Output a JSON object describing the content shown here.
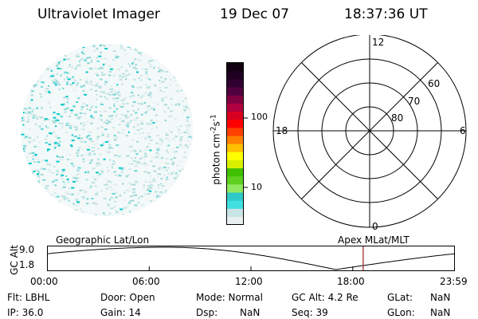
{
  "header": {
    "title": "Ultraviolet Imager",
    "date": "19 Dec 07",
    "time": "18:37:36 UT"
  },
  "colorbar": {
    "unit_base": "photon cm",
    "unit_exp1": "-2",
    "unit_mid": "s",
    "unit_exp2": "-1",
    "tick_labels": [
      "100",
      "10"
    ],
    "colors": [
      "#e8f0f0",
      "#c8e4e4",
      "#40e0e0",
      "#30c8c8",
      "#90e860",
      "#60d020",
      "#40c000",
      "#d8f000",
      "#ffff00",
      "#ffc000",
      "#ff8000",
      "#ff4000",
      "#ff0000",
      "#d80020",
      "#b00040",
      "#800040",
      "#500040",
      "#300030",
      "#200020",
      "#100010"
    ]
  },
  "polar": {
    "mlt_labels": {
      "top": "12",
      "bottom": "0",
      "left": "18",
      "right": "6"
    },
    "lat_labels": [
      "60",
      "70",
      "80"
    ]
  },
  "orbit": {
    "y_axis_label": "GC Alt",
    "y_ticks": [
      "9.0",
      "1.8"
    ],
    "left_title": "Geographic Lat/Lon",
    "right_title": "Apex MLat/MLT",
    "x_ticks": [
      "00:00",
      "06:00",
      "12:00",
      "18:00",
      "23:59"
    ],
    "marker_time": "18:37"
  },
  "info": {
    "filter_label": "Flt: LBHL",
    "ip_label": "IP: 36.0",
    "door_label": "Door:  Open",
    "gain_label": "Gain:  14",
    "mode_label": "Mode:  Normal",
    "dsp_label": "Dsp:",
    "dsp_value": "NaN",
    "gc_alt_label": "GC Alt: 4.2 Re",
    "seq_label": "Seq:  39",
    "glat_label": "GLat:",
    "glat_value": "NaN",
    "glon_label": "GLon:",
    "glon_value": "NaN"
  },
  "colors": {
    "marker": "#a02020",
    "emission": "#00c8c8"
  }
}
